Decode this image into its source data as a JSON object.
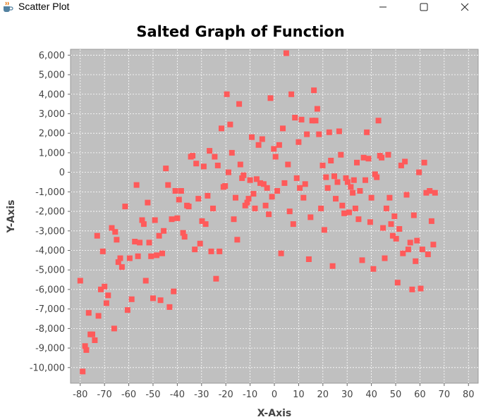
{
  "window": {
    "title": "Scatter Plot",
    "icon": "java-coffee-cup-icon",
    "controls": {
      "minimize": "minimize-icon",
      "maximize": "maximize-icon",
      "close": "close-icon"
    }
  },
  "colors": {
    "plot_background": "#c0c0c0",
    "point": "#ff5a5a",
    "grid": "#ffffff",
    "axis_text": "#444444",
    "title": "#000000"
  },
  "chart_data": {
    "type": "scatter",
    "title": "Salted Graph of Function",
    "xlabel": "X-Axis",
    "ylabel": "Y-Axis",
    "xlim": [
      -84,
      84
    ],
    "ylim": [
      -10800,
      6300
    ],
    "xticks": [
      -80,
      -70,
      -60,
      -50,
      -40,
      -30,
      -20,
      -10,
      0,
      10,
      20,
      30,
      40,
      50,
      60,
      70,
      80
    ],
    "yticks": [
      6000,
      5000,
      4000,
      3000,
      2000,
      1000,
      0,
      -1000,
      -2000,
      -3000,
      -4000,
      -5000,
      -6000,
      -7000,
      -8000,
      -9000,
      -10000
    ],
    "xtick_labels": [
      "-80",
      "-70",
      "-60",
      "-50",
      "-40",
      "-30",
      "-20",
      "-10",
      "0",
      "10",
      "20",
      "30",
      "40",
      "50",
      "60",
      "70",
      "80"
    ],
    "ytick_labels": [
      "6,000",
      "5,000",
      "4,000",
      "3,000",
      "2,000",
      "1,000",
      "0",
      "-1,000",
      "-2,000",
      "-3,000",
      "-4,000",
      "-5,000",
      "-6,000",
      "-7,000",
      "-8,000",
      "-9,000",
      "-10,000"
    ],
    "grid": true,
    "legend": "none",
    "series": [
      {
        "points": [
          [
            -80,
            -5550
          ],
          [
            -79,
            -10200
          ],
          [
            -78,
            -8900
          ],
          [
            -77.5,
            -9100
          ],
          [
            -76.5,
            -7200
          ],
          [
            -75.8,
            -8300
          ],
          [
            -75,
            -8300
          ],
          [
            -74,
            -8600
          ],
          [
            -73,
            -3250
          ],
          [
            -72.5,
            -7350
          ],
          [
            -71.5,
            -6000
          ],
          [
            -70.7,
            -4050
          ],
          [
            -70,
            -5850
          ],
          [
            -69.2,
            -6700
          ],
          [
            -68.5,
            -6300
          ],
          [
            -67,
            -2850
          ],
          [
            -66,
            -8000
          ],
          [
            -65.6,
            -3050
          ],
          [
            -65,
            -3450
          ],
          [
            -64.3,
            -4600
          ],
          [
            -63.5,
            -4400
          ],
          [
            -62.8,
            -4850
          ],
          [
            -61.5,
            -1750
          ],
          [
            -60.5,
            -7050
          ],
          [
            -59.6,
            -4400
          ],
          [
            -58.8,
            -6500
          ],
          [
            -57.5,
            -3550
          ],
          [
            -56.8,
            -650
          ],
          [
            -56.2,
            -4300
          ],
          [
            -55.5,
            -3600
          ],
          [
            -54.5,
            -2450
          ],
          [
            -53.8,
            -2650
          ],
          [
            -53,
            -5550
          ],
          [
            -52.2,
            -1550
          ],
          [
            -51.6,
            -3600
          ],
          [
            -50.8,
            -4300
          ],
          [
            -50,
            -6450
          ],
          [
            -49.2,
            -2450
          ],
          [
            -48.5,
            -4250
          ],
          [
            -47.5,
            -3250
          ],
          [
            -46.9,
            -6550
          ],
          [
            -46.2,
            -4150
          ],
          [
            -45.6,
            -3000
          ],
          [
            -44.7,
            200
          ],
          [
            -43.8,
            -650
          ],
          [
            -43.2,
            -6900
          ],
          [
            -42.3,
            -2400
          ],
          [
            -41.5,
            -6100
          ],
          [
            -40.8,
            -950
          ],
          [
            -40,
            -2350
          ],
          [
            -39.3,
            -1400
          ],
          [
            -38.4,
            -950
          ],
          [
            -37.6,
            -3100
          ],
          [
            -37,
            -3300
          ],
          [
            -36,
            -1700
          ],
          [
            -35.3,
            -1750
          ],
          [
            -34.4,
            800
          ],
          [
            -33.7,
            850
          ],
          [
            -32.8,
            -3950
          ],
          [
            -32.2,
            450
          ],
          [
            -31.3,
            -1350
          ],
          [
            -30.6,
            -3650
          ],
          [
            -29.8,
            -2500
          ],
          [
            -29.1,
            300
          ],
          [
            -28.3,
            -2650
          ],
          [
            -27.5,
            -1200
          ],
          [
            -26.7,
            1100
          ],
          [
            -26,
            -4050
          ],
          [
            -25.3,
            -1850
          ],
          [
            -24.6,
            800
          ],
          [
            -24,
            -5450
          ],
          [
            -23.3,
            350
          ],
          [
            -22.6,
            -4050
          ],
          [
            -21.8,
            2250
          ],
          [
            -21,
            -750
          ],
          [
            -20.3,
            -700
          ],
          [
            -19.6,
            4000
          ],
          [
            -18.9,
            0
          ],
          [
            -18.2,
            2450
          ],
          [
            -17.5,
            1000
          ],
          [
            -16.7,
            -2400
          ],
          [
            -16,
            -1300
          ],
          [
            -15.3,
            -3450
          ],
          [
            -14.5,
            3500
          ],
          [
            -14,
            400
          ],
          [
            -13.3,
            -300
          ],
          [
            -12.7,
            -150
          ],
          [
            -12,
            -1700
          ],
          [
            -11.2,
            -1550
          ],
          [
            -10.6,
            -1350
          ],
          [
            -10,
            -400
          ],
          [
            -9.3,
            1800
          ],
          [
            -8.6,
            -1100
          ],
          [
            -8,
            -1850
          ],
          [
            -7.3,
            -350
          ],
          [
            -6.5,
            1400
          ],
          [
            -5.8,
            -550
          ],
          [
            -5,
            1700
          ],
          [
            -4.4,
            -600
          ],
          [
            -3.6,
            -1700
          ],
          [
            -3,
            -800
          ],
          [
            -2.3,
            -2150
          ],
          [
            -1.6,
            3800
          ],
          [
            -1,
            -1250
          ],
          [
            -0.2,
            1200
          ],
          [
            0.5,
            800
          ],
          [
            1.2,
            -950
          ],
          [
            2,
            1400
          ],
          [
            2.8,
            -4150
          ],
          [
            3.5,
            2250
          ],
          [
            4.2,
            -550
          ],
          [
            4.9,
            6100
          ],
          [
            5.6,
            400
          ],
          [
            6.3,
            -2000
          ],
          [
            7,
            4000
          ],
          [
            7.8,
            -2650
          ],
          [
            8.5,
            2800
          ],
          [
            9.2,
            -300
          ],
          [
            10,
            1550
          ],
          [
            10.5,
            -800
          ],
          [
            11.2,
            2700
          ],
          [
            12,
            -1300
          ],
          [
            12.7,
            -600
          ],
          [
            13.4,
            1950
          ],
          [
            14.2,
            -4450
          ],
          [
            14.9,
            -2300
          ],
          [
            15.6,
            2650
          ],
          [
            16.3,
            4200
          ],
          [
            17,
            2650
          ],
          [
            17.7,
            3250
          ],
          [
            18.4,
            1950
          ],
          [
            19.2,
            -1850
          ],
          [
            19.9,
            350
          ],
          [
            20.6,
            -2950
          ],
          [
            21.3,
            -250
          ],
          [
            22,
            -800
          ],
          [
            22.6,
            2050
          ],
          [
            23.3,
            600
          ],
          [
            24,
            -4800
          ],
          [
            24.7,
            -200
          ],
          [
            25.3,
            -1350
          ],
          [
            26,
            -500
          ],
          [
            26.7,
            2100
          ],
          [
            27.4,
            900
          ],
          [
            28,
            -1700
          ],
          [
            28.8,
            -2100
          ],
          [
            29.5,
            -300
          ],
          [
            30.2,
            -500
          ],
          [
            30.8,
            -2050
          ],
          [
            31.5,
            -750
          ],
          [
            32.3,
            -1050
          ],
          [
            32.8,
            -400
          ],
          [
            33.4,
            -1850
          ],
          [
            34,
            500
          ],
          [
            34.7,
            -2400
          ],
          [
            35.3,
            -950
          ],
          [
            36.2,
            -4500
          ],
          [
            36.8,
            750
          ],
          [
            37.5,
            -400
          ],
          [
            38.1,
            2050
          ],
          [
            38.8,
            700
          ],
          [
            39.5,
            -2550
          ],
          [
            40,
            -1300
          ],
          [
            40.8,
            -4950
          ],
          [
            41.5,
            -100
          ],
          [
            42.2,
            -250
          ],
          [
            42.9,
            2650
          ],
          [
            43.5,
            850
          ],
          [
            44.2,
            750
          ],
          [
            44.8,
            -2850
          ],
          [
            45.5,
            -4400
          ],
          [
            46.2,
            -1850
          ],
          [
            46.9,
            900
          ],
          [
            47.5,
            -1300
          ],
          [
            48.1,
            -2650
          ],
          [
            48.8,
            -3250
          ],
          [
            49.5,
            -2250
          ],
          [
            50.2,
            -3400
          ],
          [
            50.8,
            -5650
          ],
          [
            51.5,
            -2900
          ],
          [
            52.3,
            350
          ],
          [
            53,
            -4150
          ],
          [
            53.8,
            550
          ],
          [
            54.5,
            -1150
          ],
          [
            55.2,
            -3950
          ],
          [
            56,
            -3600
          ],
          [
            56.8,
            -6000
          ],
          [
            57.5,
            -2200
          ],
          [
            58.2,
            -4550
          ],
          [
            58.8,
            -3500
          ],
          [
            59.6,
            0
          ],
          [
            60.3,
            -5950
          ],
          [
            61,
            -3950
          ],
          [
            61.8,
            500
          ],
          [
            62.6,
            -1050
          ],
          [
            63.3,
            -4200
          ],
          [
            64,
            -950
          ],
          [
            64.8,
            -2500
          ],
          [
            65.5,
            -3700
          ],
          [
            66.2,
            -1050
          ]
        ]
      }
    ]
  }
}
